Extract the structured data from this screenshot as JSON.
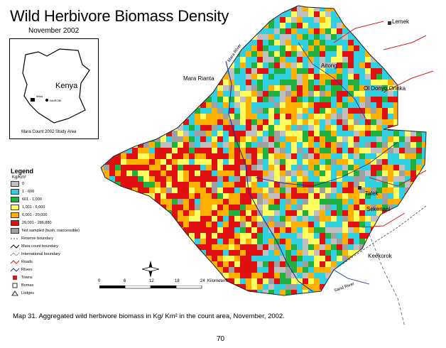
{
  "map": {
    "title": "Wild Herbivore Biomass Density",
    "subtitle": "November 2002",
    "caption": "Map 31.  Aggregated wild herbivore biomass in Kg/ Km² in the count area, November, 2002.",
    "page_number": "70"
  },
  "inset": {
    "country": "Kenya",
    "caption": "Mara Count 2002 Study Area",
    "label_mara": "Mara",
    "label_nairobi": "NAIROBI"
  },
  "places": {
    "lemek": "Lemek",
    "mara_rianta": "Mara Rianta",
    "aitong": "Aitong",
    "ol_donyo_orinka": "Ol Donyo Orinka",
    "talek": "Talek",
    "sekenani": "Sekenani",
    "keekorok": "Keekorok",
    "mara_river": "Mara River",
    "sand_river": "Sand River"
  },
  "legend": {
    "title": "Legend",
    "units": "Kg/Km²",
    "classes": [
      {
        "label": "0",
        "color": "#c0c0c0"
      },
      {
        "label": "1 - 600",
        "color": "#30d0e0"
      },
      {
        "label": "601 - 1,000",
        "color": "#20b040"
      },
      {
        "label": "1,001 - 6,000",
        "color": "#ffff60"
      },
      {
        "label": "6,001 - 20,000",
        "color": "#ffb000"
      },
      {
        "label": "20,001 - 286,880",
        "color": "#e01010"
      },
      {
        "label": "Not sampled (bush, inaccessible)",
        "color": "#a0a0a0"
      }
    ],
    "lines": [
      {
        "label": "Reserve boundary",
        "icon": "reserve-boundary-line"
      },
      {
        "label": "Mara count boundary",
        "icon": "count-boundary-line"
      },
      {
        "label": "International boundary",
        "icon": "international-boundary-line"
      },
      {
        "label": "Roads",
        "icon": "road-line"
      },
      {
        "label": "Rivers",
        "icon": "river-line"
      }
    ],
    "points": [
      {
        "label": "Towns",
        "icon": "town-marker"
      },
      {
        "label": "Bomas",
        "icon": "boma-marker"
      },
      {
        "label": "Lodges",
        "icon": "lodge-marker"
      }
    ]
  },
  "scale": {
    "ticks": [
      "0",
      "6",
      "12",
      "18",
      "24"
    ],
    "unit": "Kilometers"
  },
  "north": {
    "N": "N",
    "S": "S",
    "E": "E",
    "W": "W"
  }
}
